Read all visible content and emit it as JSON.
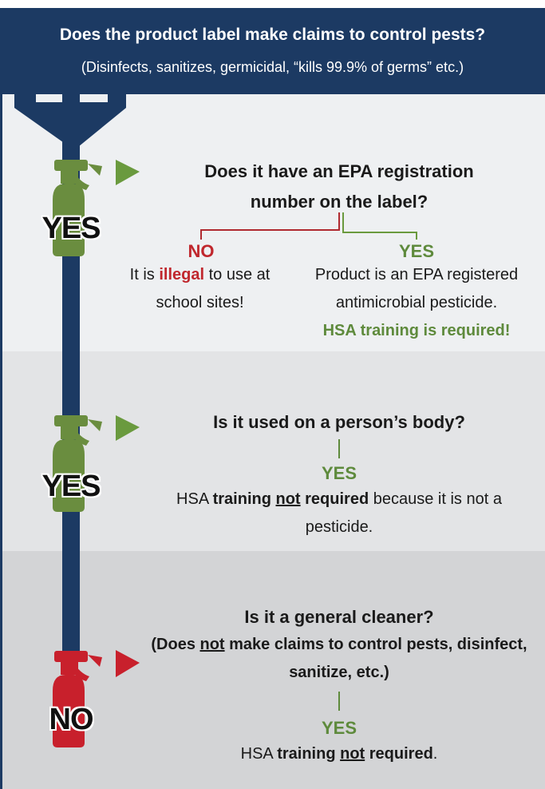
{
  "header": {
    "title": "Does the product label make claims to control pests?",
    "subtitle": "(Disinfects, sanitizes, germicidal, “kills 99.9% of germs” etc.)"
  },
  "steps": [
    {
      "badge": "YES",
      "question": "Does it have an EPA registration number on the label?",
      "branches": [
        {
          "label": "NO",
          "text": [
            "It is ",
            "illegal",
            " to use at school sites!"
          ]
        },
        {
          "label": "YES",
          "text": "Product is an EPA registered antimicrobial pesticide.",
          "note": "HSA training is required!"
        }
      ]
    },
    {
      "badge": "YES",
      "question": "Is it used on a person’s body?",
      "answer": "YES",
      "text": [
        "HSA ",
        "training ",
        "not",
        " required",
        " because it is not a pesticide."
      ]
    },
    {
      "badge": "NO",
      "question": "Is it a general cleaner?",
      "sub": [
        "(Does ",
        "not",
        " make claims to control pests, disinfect, sanitize, etc.)"
      ],
      "answer": "YES",
      "text": [
        "HSA ",
        "training ",
        "not",
        " required",
        "."
      ]
    }
  ]
}
